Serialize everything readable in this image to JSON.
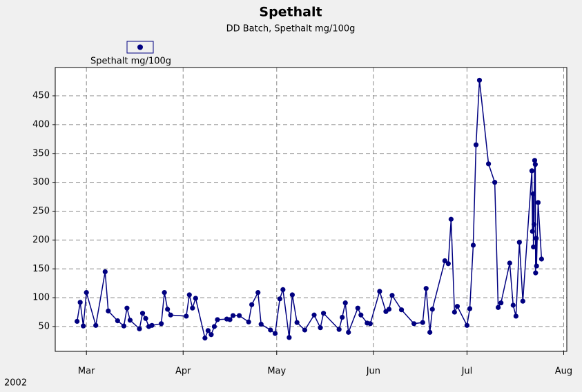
{
  "chart_data": {
    "type": "line",
    "title": "Spethalt",
    "subtitle": "DD Batch, Spethalt mg/100g",
    "year_label": "2002",
    "legend": "top-left",
    "grid": true,
    "xlim": [
      50,
      214
    ],
    "xticks": [
      {
        "value": 60,
        "label": "Mar"
      },
      {
        "value": 91,
        "label": "Apr"
      },
      {
        "value": 121,
        "label": "May"
      },
      {
        "value": 152,
        "label": "Jun"
      },
      {
        "value": 182,
        "label": "Jul"
      },
      {
        "value": 213,
        "label": "Aug"
      }
    ],
    "ylim": [
      7,
      499
    ],
    "yticks": [
      50,
      100,
      150,
      200,
      250,
      300,
      350,
      400,
      450
    ],
    "x": [
      57,
      58,
      59,
      60,
      63,
      66,
      67,
      70,
      72,
      73,
      74,
      77,
      78,
      79,
      80,
      81,
      84,
      85,
      86,
      87,
      92,
      93,
      94,
      95,
      98,
      99,
      100,
      101,
      102,
      105,
      106,
      107,
      109,
      112,
      113,
      115,
      116,
      119,
      120.5,
      122,
      123,
      125,
      126,
      127.5,
      130,
      133,
      135,
      136,
      141,
      142,
      143,
      144,
      147,
      148,
      150,
      151,
      154,
      156,
      157,
      158,
      161,
      165,
      167.8,
      168.9,
      170.1,
      170.9,
      174.9,
      176,
      176.9,
      178,
      178.9,
      182,
      182.9,
      184,
      184.9,
      186,
      188.9,
      190.9,
      192,
      192.9,
      195.7,
      196.8,
      197.7,
      198.8,
      199.9,
      202.8,
      203,
      203.2,
      203.3,
      203.5,
      203.7,
      203.9,
      204,
      204.2,
      204.3,
      204.8,
      205.9
    ],
    "series": [
      {
        "name": "Spethalt mg/100g",
        "color": "#000080",
        "values": [
          59,
          92,
          51,
          109,
          52,
          145,
          77,
          60,
          51,
          82,
          61,
          46,
          73,
          64,
          50,
          52,
          55,
          109,
          80,
          70,
          68,
          105,
          82,
          99,
          30,
          43,
          36,
          50,
          62,
          63,
          62,
          69,
          69,
          58,
          88,
          109,
          54,
          44,
          38,
          98,
          114,
          31,
          105,
          57,
          44,
          70,
          48,
          73,
          45,
          66,
          91,
          40,
          82,
          70,
          56,
          55,
          111,
          76,
          80,
          104,
          79,
          55,
          57,
          116,
          40,
          80,
          164,
          159,
          236,
          75,
          85,
          52,
          81,
          191,
          365,
          477,
          332,
          300,
          83,
          91,
          160,
          87,
          68,
          196,
          94,
          320,
          215,
          280,
          188,
          227,
          338,
          331,
          143,
          203,
          155,
          265,
          167
        ]
      }
    ]
  }
}
